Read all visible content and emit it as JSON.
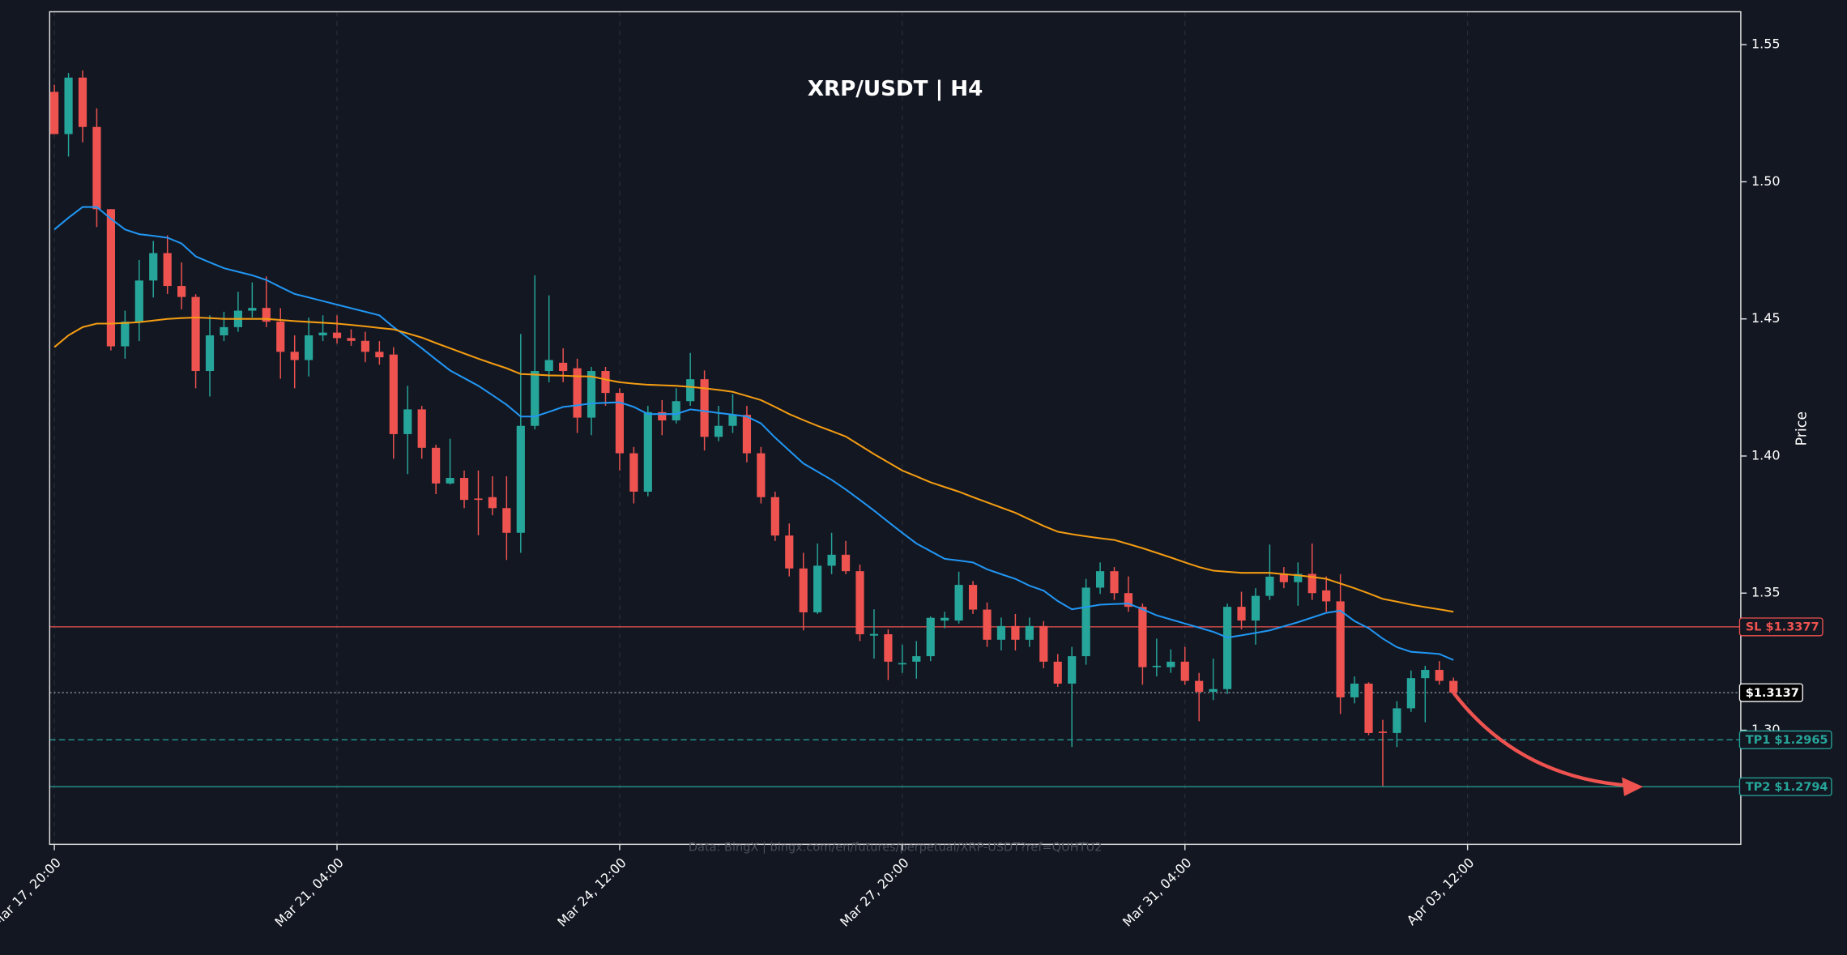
{
  "chart_data": {
    "type": "candlestick",
    "title": "XRP/USDT | H4",
    "y_label": "Price",
    "source": "Data: BingX | bingx.com/en/futures/perpetual/XRP-USDT?ref=QUHTU2",
    "x": [
      "Mar 17, 20:00",
      "Mar 18, 00:00",
      "Mar 18, 04:00",
      "Mar 18, 08:00",
      "Mar 18, 12:00",
      "Mar 18, 16:00",
      "Mar 18, 20:00",
      "Mar 19, 00:00",
      "Mar 19, 04:00",
      "Mar 19, 08:00",
      "Mar 19, 12:00",
      "Mar 19, 16:00",
      "Mar 19, 20:00",
      "Mar 20, 00:00",
      "Mar 20, 04:00",
      "Mar 20, 08:00",
      "Mar 20, 12:00",
      "Mar 20, 16:00",
      "Mar 20, 20:00",
      "Mar 21, 00:00",
      "Mar 21, 04:00",
      "Mar 21, 08:00",
      "Mar 21, 12:00",
      "Mar 21, 16:00",
      "Mar 21, 20:00",
      "Mar 22, 00:00",
      "Mar 22, 04:00",
      "Mar 22, 08:00",
      "Mar 22, 12:00",
      "Mar 22, 16:00",
      "Mar 22, 20:00",
      "Mar 23, 00:00",
      "Mar 23, 04:00",
      "Mar 23, 08:00",
      "Mar 23, 12:00",
      "Mar 23, 16:00",
      "Mar 23, 20:00",
      "Mar 24, 00:00",
      "Mar 24, 04:00",
      "Mar 24, 08:00",
      "Mar 24, 12:00",
      "Mar 24, 16:00",
      "Mar 24, 20:00",
      "Mar 25, 00:00",
      "Mar 25, 04:00",
      "Mar 25, 08:00",
      "Mar 25, 12:00",
      "Mar 25, 16:00",
      "Mar 25, 20:00",
      "Mar 26, 00:00",
      "Mar 26, 04:00",
      "Mar 26, 08:00",
      "Mar 26, 12:00",
      "Mar 26, 16:00",
      "Mar 26, 20:00",
      "Mar 27, 00:00",
      "Mar 27, 04:00",
      "Mar 27, 08:00",
      "Mar 27, 12:00",
      "Mar 27, 16:00",
      "Mar 27, 20:00",
      "Mar 28, 00:00",
      "Mar 28, 04:00",
      "Mar 28, 08:00",
      "Mar 28, 12:00",
      "Mar 28, 16:00",
      "Mar 28, 20:00",
      "Mar 29, 00:00",
      "Mar 29, 04:00",
      "Mar 29, 08:00",
      "Mar 29, 12:00",
      "Mar 29, 16:00",
      "Mar 29, 20:00",
      "Mar 30, 00:00",
      "Mar 30, 04:00",
      "Mar 30, 08:00",
      "Mar 30, 12:00",
      "Mar 30, 16:00",
      "Mar 30, 20:00",
      "Mar 31, 00:00",
      "Mar 31, 04:00",
      "Mar 31, 08:00",
      "Mar 31, 12:00",
      "Mar 31, 16:00",
      "Mar 31, 20:00",
      "Apr 01, 00:00",
      "Apr 01, 04:00",
      "Apr 01, 08:00",
      "Apr 01, 12:00",
      "Apr 01, 16:00",
      "Apr 01, 20:00",
      "Apr 02, 00:00",
      "Apr 02, 04:00",
      "Apr 02, 08:00",
      "Apr 02, 12:00",
      "Apr 02, 16:00",
      "Apr 02, 20:00",
      "Apr 03, 00:00",
      "Apr 03, 04:00",
      "Apr 03, 08:00"
    ],
    "open": [
      1.5328,
      1.5174,
      1.538,
      1.52,
      1.49,
      1.44,
      1.449,
      1.464,
      1.474,
      1.462,
      1.458,
      1.431,
      1.444,
      1.447,
      1.453,
      1.454,
      1.449,
      1.438,
      1.435,
      1.444,
      1.445,
      1.443,
      1.442,
      1.438,
      1.437,
      1.408,
      1.417,
      1.403,
      1.39,
      1.392,
      1.3845,
      1.385,
      1.381,
      1.372,
      1.411,
      1.431,
      1.434,
      1.432,
      1.414,
      1.431,
      1.423,
      1.401,
      1.387,
      1.416,
      1.413,
      1.42,
      1.428,
      1.407,
      1.411,
      1.415,
      1.401,
      1.385,
      1.371,
      1.359,
      1.343,
      1.36,
      1.364,
      1.358,
      1.3345,
      1.335,
      1.324,
      1.325,
      1.327,
      1.34,
      1.34,
      1.353,
      1.344,
      1.333,
      1.338,
      1.333,
      1.338,
      1.325,
      1.317,
      1.327,
      1.352,
      1.358,
      1.35,
      1.345,
      1.323,
      1.323,
      1.325,
      1.318,
      1.314,
      1.315,
      1.345,
      1.34,
      1.349,
      1.357,
      1.354,
      1.357,
      1.351,
      1.347,
      1.312,
      1.317,
      1.2995,
      1.299,
      1.308,
      1.319,
      1.322,
      1.318
    ],
    "high": [
      1.5354,
      1.5397,
      1.5406,
      1.5268,
      1.49,
      1.453,
      1.4715,
      1.4784,
      1.4805,
      1.4706,
      1.459,
      1.4513,
      1.4526,
      1.4599,
      1.4633,
      1.4655,
      1.4539,
      1.444,
      1.4505,
      1.4513,
      1.4513,
      1.4462,
      1.4453,
      1.4419,
      1.4397,
      1.4256,
      1.4183,
      1.4041,
      1.4063,
      1.3947,
      1.3947,
      1.3926,
      1.3926,
      1.4445,
      1.4659,
      1.4586,
      1.4393,
      1.4355,
      1.4325,
      1.4325,
      1.4247,
      1.4033,
      1.4183,
      1.4204,
      1.4247,
      1.4376,
      1.4312,
      1.4183,
      1.4226,
      1.4183,
      1.4033,
      1.387,
      1.3754,
      1.3647,
      1.3681,
      1.372,
      1.369,
      1.3604,
      1.3441,
      1.3368,
      1.3312,
      1.3325,
      1.3415,
      1.3432,
      1.3578,
      1.3544,
      1.3466,
      1.3411,
      1.3424,
      1.3411,
      1.3398,
      1.3278,
      1.3304,
      1.3552,
      1.3612,
      1.3595,
      1.3561,
      1.3462,
      1.3334,
      1.3295,
      1.3304,
      1.3209,
      1.3261,
      1.3462,
      1.3505,
      1.3518,
      1.3677,
      1.3595,
      1.3612,
      1.3681,
      1.3561,
      1.3569,
      1.3196,
      1.3175,
      1.3038,
      1.3106,
      1.3218,
      1.3235,
      1.3252,
      1.3192
    ],
    "low": [
      1.5174,
      1.5092,
      1.5144,
      1.4835,
      1.4385,
      1.4355,
      1.4419,
      1.4578,
      1.4591,
      1.4535,
      1.4247,
      1.4217,
      1.4419,
      1.4453,
      1.4505,
      1.447,
      1.4282,
      1.4247,
      1.429,
      1.4419,
      1.441,
      1.4402,
      1.4342,
      1.4333,
      1.399,
      1.3934,
      1.399,
      1.3861,
      1.3896,
      1.381,
      1.3711,
      1.3784,
      1.3621,
      1.3647,
      1.4097,
      1.4269,
      1.4269,
      1.4084,
      1.4076,
      1.4183,
      1.3947,
      1.3827,
      1.3853,
      1.4076,
      1.4119,
      1.4183,
      1.402,
      1.4054,
      1.4084,
      1.3977,
      1.3827,
      1.369,
      1.3561,
      1.3364,
      1.3424,
      1.3569,
      1.3569,
      1.3325,
      1.3261,
      1.3183,
      1.3209,
      1.3188,
      1.3252,
      1.3372,
      1.3389,
      1.3424,
      1.3304,
      1.3291,
      1.3291,
      1.3304,
      1.3226,
      1.3158,
      1.2939,
      1.3239,
      1.3497,
      1.3475,
      1.3432,
      1.3166,
      1.3196,
      1.3209,
      1.3166,
      1.3033,
      1.311,
      1.3132,
      1.3368,
      1.3312,
      1.3475,
      1.3518,
      1.3454,
      1.3475,
      1.3432,
      1.3059,
      1.3098,
      1.2982,
      1.2797,
      1.2939,
      1.3067,
      1.3029,
      1.3166,
      1.3132
    ],
    "close": [
      1.5174,
      1.538,
      1.52,
      1.49,
      1.44,
      1.449,
      1.464,
      1.474,
      1.462,
      1.458,
      1.431,
      1.444,
      1.447,
      1.453,
      1.454,
      1.449,
      1.438,
      1.435,
      1.444,
      1.445,
      1.443,
      1.442,
      1.438,
      1.436,
      1.408,
      1.417,
      1.403,
      1.39,
      1.392,
      1.384,
      1.384,
      1.381,
      1.372,
      1.411,
      1.431,
      1.435,
      1.431,
      1.414,
      1.431,
      1.423,
      1.401,
      1.387,
      1.416,
      1.413,
      1.42,
      1.428,
      1.407,
      1.411,
      1.415,
      1.401,
      1.385,
      1.371,
      1.359,
      1.343,
      1.36,
      1.364,
      1.358,
      1.335,
      1.3351,
      1.325,
      1.3245,
      1.327,
      1.341,
      1.341,
      1.353,
      1.344,
      1.333,
      1.338,
      1.333,
      1.338,
      1.325,
      1.317,
      1.327,
      1.352,
      1.358,
      1.35,
      1.345,
      1.323,
      1.3235,
      1.325,
      1.318,
      1.314,
      1.315,
      1.345,
      1.34,
      1.349,
      1.356,
      1.354,
      1.357,
      1.35,
      1.347,
      1.312,
      1.317,
      1.299,
      1.299,
      1.308,
      1.319,
      1.322,
      1.318,
      1.3137
    ],
    "up_color": "#26a69a",
    "down_color": "#ef5350",
    "series": [
      {
        "color": "#2196f3",
        "values": [
          1.4826,
          1.4869,
          1.4908,
          1.4908,
          1.4865,
          1.4826,
          1.4809,
          1.4803,
          1.4796,
          1.4775,
          1.4728,
          1.4706,
          1.4685,
          1.4672,
          1.4659,
          1.4642,
          1.4616,
          1.4591,
          1.4578,
          1.4565,
          1.4552,
          1.4539,
          1.4526,
          1.4513,
          1.447,
          1.4432,
          1.4393,
          1.4352,
          1.4312,
          1.4284,
          1.4256,
          1.4222,
          1.4187,
          1.4144,
          1.4144,
          1.4161,
          1.4179,
          1.4185,
          1.4192,
          1.4194,
          1.4196,
          1.4179,
          1.4153,
          1.4153,
          1.4153,
          1.417,
          1.4164,
          1.4157,
          1.4151,
          1.4144,
          1.4119,
          1.4067,
          1.402,
          1.3973,
          1.3943,
          1.3913,
          1.3878,
          1.384,
          1.3801,
          1.376,
          1.372,
          1.3681,
          1.3653,
          1.3625,
          1.3619,
          1.3612,
          1.3587,
          1.3569,
          1.3552,
          1.3527,
          1.3509,
          1.3471,
          1.3441,
          1.3449,
          1.3458,
          1.346,
          1.3462,
          1.3441,
          1.3419,
          1.3404,
          1.3389,
          1.3374,
          1.3359,
          1.3338,
          1.3346,
          1.3355,
          1.3364,
          1.3379,
          1.3394,
          1.3411,
          1.3428,
          1.3436,
          1.3398,
          1.3372,
          1.3334,
          1.3303,
          1.3286,
          1.3282,
          1.3278,
          1.3256
        ]
      },
      {
        "color": "#f39c12",
        "values": [
          1.4397,
          1.444,
          1.447,
          1.4483,
          1.4483,
          1.4485,
          1.4488,
          1.4494,
          1.45,
          1.4503,
          1.4505,
          1.4503,
          1.45,
          1.45,
          1.45,
          1.45,
          1.4496,
          1.4492,
          1.4489,
          1.4486,
          1.4483,
          1.4478,
          1.4473,
          1.4467,
          1.4462,
          1.4447,
          1.4432,
          1.4412,
          1.4393,
          1.4374,
          1.4355,
          1.4337,
          1.432,
          1.4299,
          1.4297,
          1.4294,
          1.4293,
          1.4291,
          1.429,
          1.4279,
          1.4269,
          1.4264,
          1.426,
          1.4258,
          1.4256,
          1.4252,
          1.4247,
          1.4241,
          1.4234,
          1.4219,
          1.4204,
          1.4179,
          1.4153,
          1.4131,
          1.411,
          1.4091,
          1.4071,
          1.4039,
          1.4007,
          1.3977,
          1.3947,
          1.3926,
          1.3904,
          1.3887,
          1.387,
          1.385,
          1.3831,
          1.3812,
          1.3793,
          1.3769,
          1.3745,
          1.3724,
          1.3715,
          1.3707,
          1.37,
          1.3694,
          1.3679,
          1.3664,
          1.3647,
          1.363,
          1.3612,
          1.3595,
          1.3582,
          1.3578,
          1.3574,
          1.3574,
          1.3574,
          1.3569,
          1.3565,
          1.3559,
          1.3552,
          1.3535,
          1.3518,
          1.3499,
          1.3479,
          1.3469,
          1.3458,
          1.3449,
          1.3441,
          1.3432
        ]
      }
    ],
    "levels": [
      {
        "label": "SL $1.3377",
        "value": 1.3377,
        "color": "#ef5350",
        "style": "solid"
      },
      {
        "label": "$1.3137",
        "value": 1.3137,
        "color": "#ffffff",
        "style": "dotted"
      },
      {
        "label": "TP1 $1.2965",
        "value": 1.2965,
        "color": "#26a69a",
        "style": "dashed"
      },
      {
        "label": "TP2 $1.2794",
        "value": 1.2794,
        "color": "#26a69a",
        "style": "solid"
      }
    ],
    "ylim": [
      1.2584,
      1.562
    ],
    "yticks": [
      {
        "value": 1.3,
        "label": "1.30"
      },
      1.35,
      {
        "value": 1.4,
        "label": "1.40"
      },
      1.45,
      {
        "value": 1.5,
        "label": "1.50"
      },
      1.55
    ],
    "xticks": [
      "Mar 17, 20:00",
      "Mar 21, 04:00",
      "Mar 24, 12:00",
      "Mar 27, 20:00",
      "Mar 31, 04:00",
      "Apr 03, 12:00"
    ],
    "grid": true
  }
}
